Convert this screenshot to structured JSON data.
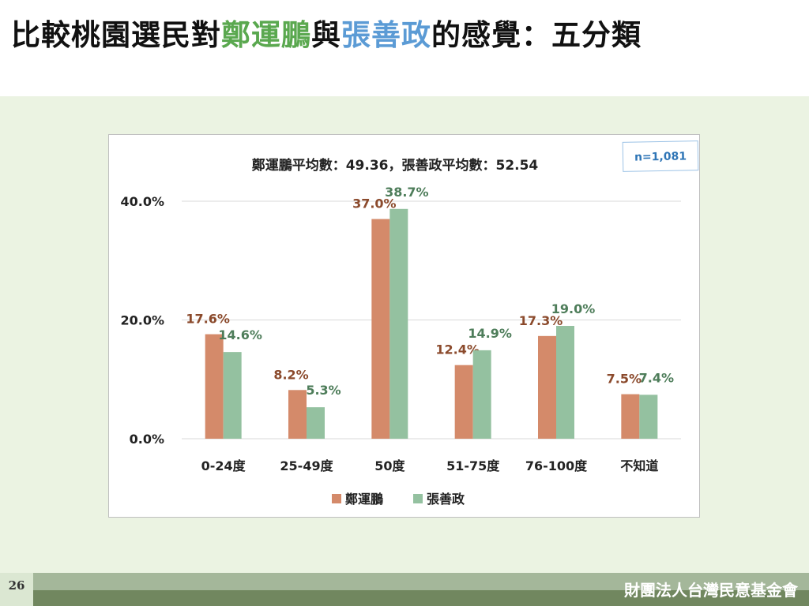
{
  "title": {
    "part1": "比較桃園選民對",
    "name1": "鄭運鵬",
    "part2": "與",
    "name2": "張善政",
    "part3": "的感覺：五分類"
  },
  "colors": {
    "name1": "#5aa84f",
    "name2": "#5b9bd5",
    "series1_bar": "#d48a6a",
    "series2_bar": "#94c1a0",
    "series1_label": "#8b4a2c",
    "series2_label": "#4e7d5a",
    "background": "#ebf3e2"
  },
  "footer": {
    "page_number": "26",
    "org": "財團法人台灣民意基金會"
  },
  "chart_data": {
    "type": "bar",
    "title": "鄭運鵬平均數：49.36，張善政平均數：52.54",
    "sample_note": "n=1,081",
    "categories": [
      "0-24度",
      "25-49度",
      "50度",
      "51-75度",
      "76-100度",
      "不知道"
    ],
    "series": [
      {
        "name": "鄭運鵬",
        "values": [
          17.6,
          8.2,
          37.0,
          12.4,
          17.3,
          7.5
        ],
        "labels": [
          "17.6%",
          "8.2%",
          "37.0%",
          "12.4%",
          "17.3%",
          "7.5%"
        ]
      },
      {
        "name": "張善政",
        "values": [
          14.6,
          5.3,
          38.7,
          14.9,
          19.0,
          7.4
        ],
        "labels": [
          "14.6%",
          "5.3%",
          "38.7%",
          "14.9%",
          "19.0%",
          "7.4%"
        ]
      }
    ],
    "ylim": [
      0,
      40
    ],
    "yticks": [
      "0.0%",
      "20.0%",
      "40.0%"
    ],
    "ytick_values": [
      0,
      20,
      40
    ],
    "grid": true,
    "legend_position": "bottom-center"
  }
}
